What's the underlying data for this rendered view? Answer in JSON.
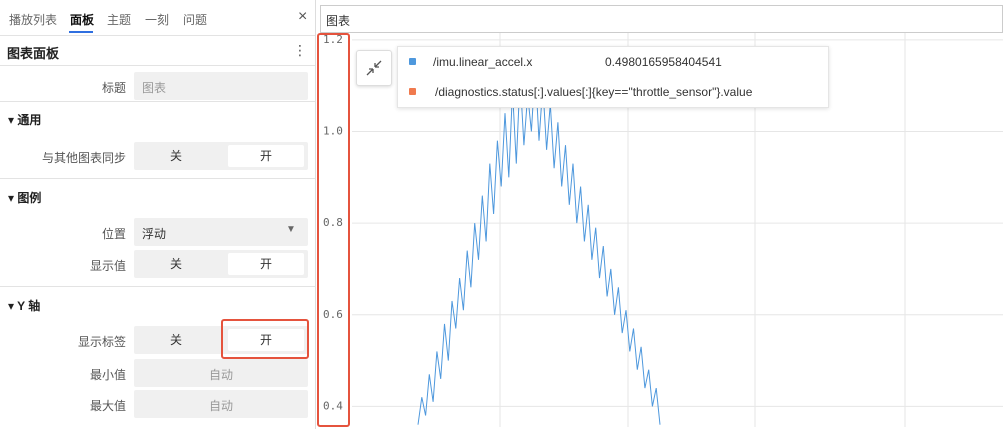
{
  "tabs": [
    "播放列表",
    "面板",
    "主题",
    "一刻",
    "问题"
  ],
  "panel_title": "图表面板",
  "settings": {
    "title_field": {
      "label": "标题",
      "placeholder": "图表"
    },
    "sections": [
      {
        "name": "通用",
        "rows": [
          {
            "label": "与其他图表同步",
            "options": [
              "关",
              "开"
            ]
          }
        ]
      },
      {
        "name": "图例",
        "rows": [
          {
            "label": "位置",
            "select": "浮动"
          },
          {
            "label": "显示值",
            "options": [
              "关",
              "开"
            ]
          }
        ]
      },
      {
        "name": "Y 轴",
        "rows": [
          {
            "label": "显示标签",
            "options": [
              "关",
              "开"
            ]
          },
          {
            "label": "最小值",
            "input": "自动"
          },
          {
            "label": "最大值",
            "input": "自动"
          }
        ]
      }
    ]
  },
  "chart_title": "图表",
  "chart_data": {
    "type": "line",
    "ylim": [
      0.355,
      1.215
    ],
    "yticks": [
      1.2,
      {
        "value": 1,
        "label": "1.0"
      },
      0.8,
      0.6,
      0.4
    ],
    "grid": true,
    "series": [
      {
        "name": "/imu.linear_accel.x",
        "color": "#4e98dd",
        "hover_value": 0.4980165958404541,
        "values": [
          0.36,
          0.42,
          0.38,
          0.47,
          0.41,
          0.52,
          0.46,
          0.58,
          0.5,
          0.63,
          0.57,
          0.68,
          0.61,
          0.74,
          0.66,
          0.8,
          0.72,
          0.86,
          0.76,
          0.93,
          0.82,
          0.98,
          0.88,
          1.04,
          0.9,
          1.09,
          0.93,
          1.12,
          0.97,
          1.08,
          1.0,
          1.14,
          0.98,
          1.1,
          0.96,
          1.06,
          0.92,
          1.02,
          0.88,
          0.97,
          0.84,
          0.93,
          0.8,
          0.88,
          0.76,
          0.84,
          0.72,
          0.79,
          0.68,
          0.75,
          0.64,
          0.7,
          0.6,
          0.66,
          0.56,
          0.61,
          0.52,
          0.57,
          0.48,
          0.53,
          0.44,
          0.48,
          0.4,
          0.44,
          0.36
        ]
      },
      {
        "name": "/diagnostics.status[:].values[:]{key==\"throttle_sensor\"}.value",
        "color": "#f07a4e"
      }
    ]
  }
}
